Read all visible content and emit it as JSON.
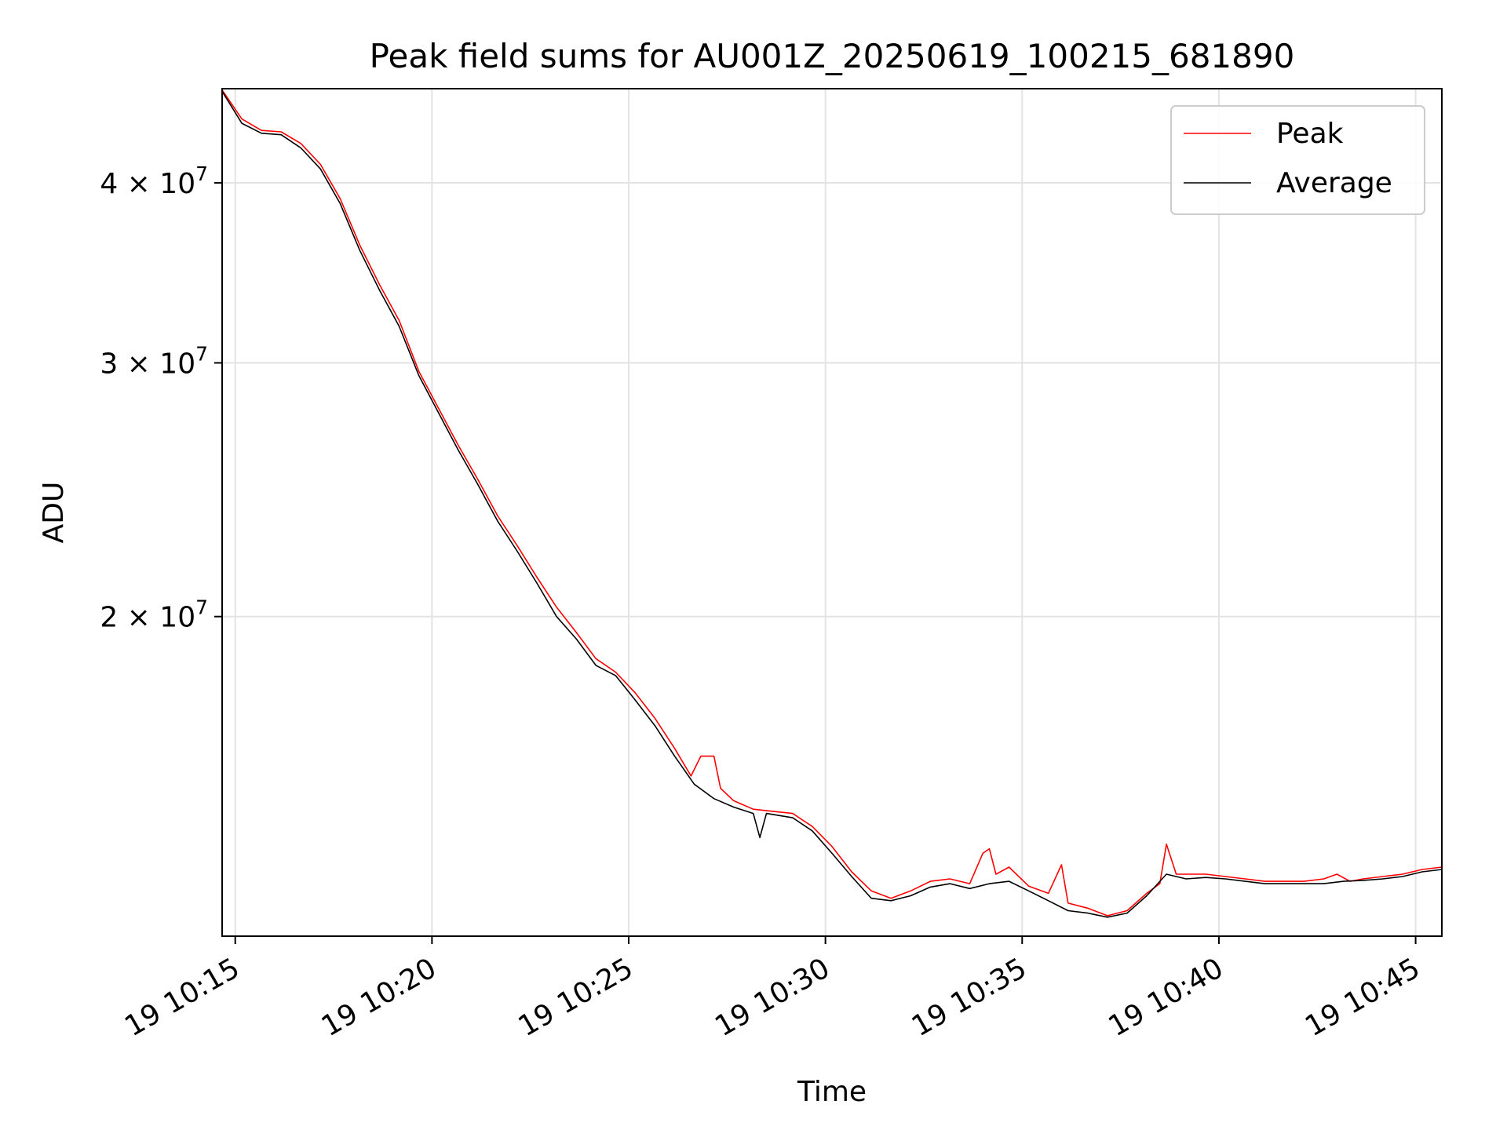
{
  "chart_data": {
    "type": "line",
    "title": "Peak field sums for AU001Z_20250619_100215_681890",
    "xlabel": "Time",
    "ylabel": "ADU",
    "x_scale": "time",
    "y_scale": "log",
    "xlim": [
      "2025-06-19 10:14:40",
      "2025-06-19 10:45:40"
    ],
    "ylim": [
      12000000,
      46500000
    ],
    "x_tick_labels": [
      {
        "value": "2025-06-19 10:15:00",
        "label": "19 10:15"
      },
      {
        "value": "2025-06-19 10:20:00",
        "label": "19 10:20"
      },
      {
        "value": "2025-06-19 10:25:00",
        "label": "19 10:25"
      },
      {
        "value": "2025-06-19 10:30:00",
        "label": "19 10:30"
      },
      {
        "value": "2025-06-19 10:35:00",
        "label": "19 10:35"
      },
      {
        "value": "2025-06-19 10:40:00",
        "label": "19 10:40"
      },
      {
        "value": "2025-06-19 10:45:00",
        "label": "19 10:45"
      }
    ],
    "y_tick_labels": [
      {
        "value": 20000000,
        "mantissa": "2",
        "base": "10",
        "exponent": "7"
      },
      {
        "value": 30000000,
        "mantissa": "3",
        "base": "10",
        "exponent": "7"
      },
      {
        "value": 40000000,
        "mantissa": "4",
        "base": "10",
        "exponent": "7"
      }
    ],
    "grid": true,
    "legend_position": "top-right",
    "series": [
      {
        "name": "Peak",
        "color": "#ff0000",
        "points": [
          [
            "2025-06-19 10:14:40",
            46400000
          ],
          [
            "2025-06-19 10:15:10",
            44300000
          ],
          [
            "2025-06-19 10:15:40",
            43500000
          ],
          [
            "2025-06-19 10:16:10",
            43400000
          ],
          [
            "2025-06-19 10:16:40",
            42600000
          ],
          [
            "2025-06-19 10:17:10",
            41200000
          ],
          [
            "2025-06-19 10:17:40",
            39000000
          ],
          [
            "2025-06-19 10:18:10",
            36200000
          ],
          [
            "2025-06-19 10:18:40",
            34000000
          ],
          [
            "2025-06-19 10:19:10",
            32100000
          ],
          [
            "2025-06-19 10:19:40",
            29600000
          ],
          [
            "2025-06-19 10:20:10",
            27900000
          ],
          [
            "2025-06-19 10:20:40",
            26300000
          ],
          [
            "2025-06-19 10:21:10",
            24900000
          ],
          [
            "2025-06-19 10:21:40",
            23500000
          ],
          [
            "2025-06-19 10:22:10",
            22400000
          ],
          [
            "2025-06-19 10:22:40",
            21300000
          ],
          [
            "2025-06-19 10:23:10",
            20300000
          ],
          [
            "2025-06-19 10:23:40",
            19500000
          ],
          [
            "2025-06-19 10:24:10",
            18700000
          ],
          [
            "2025-06-19 10:24:40",
            18300000
          ],
          [
            "2025-06-19 10:25:10",
            17700000
          ],
          [
            "2025-06-19 10:25:40",
            17000000
          ],
          [
            "2025-06-19 10:26:10",
            16200000
          ],
          [
            "2025-06-19 10:26:35",
            15500000
          ],
          [
            "2025-06-19 10:26:50",
            16000000
          ],
          [
            "2025-06-19 10:27:10",
            16000000
          ],
          [
            "2025-06-19 10:27:20",
            15200000
          ],
          [
            "2025-06-19 10:27:40",
            14900000
          ],
          [
            "2025-06-19 10:28:10",
            14700000
          ],
          [
            "2025-06-19 10:28:40",
            14650000
          ],
          [
            "2025-06-19 10:29:10",
            14600000
          ],
          [
            "2025-06-19 10:29:40",
            14300000
          ],
          [
            "2025-06-19 10:30:10",
            13850000
          ],
          [
            "2025-06-19 10:30:40",
            13300000
          ],
          [
            "2025-06-19 10:31:10",
            12900000
          ],
          [
            "2025-06-19 10:31:40",
            12750000
          ],
          [
            "2025-06-19 10:32:10",
            12900000
          ],
          [
            "2025-06-19 10:32:40",
            13100000
          ],
          [
            "2025-06-19 10:33:10",
            13150000
          ],
          [
            "2025-06-19 10:33:40",
            13050000
          ],
          [
            "2025-06-19 10:34:00",
            13700000
          ],
          [
            "2025-06-19 10:34:10",
            13800000
          ],
          [
            "2025-06-19 10:34:20",
            13250000
          ],
          [
            "2025-06-19 10:34:40",
            13400000
          ],
          [
            "2025-06-19 10:35:10",
            13000000
          ],
          [
            "2025-06-19 10:35:40",
            12850000
          ],
          [
            "2025-06-19 10:36:00",
            13450000
          ],
          [
            "2025-06-19 10:36:10",
            12650000
          ],
          [
            "2025-06-19 10:36:40",
            12550000
          ],
          [
            "2025-06-19 10:37:10",
            12400000
          ],
          [
            "2025-06-19 10:37:40",
            12500000
          ],
          [
            "2025-06-19 10:38:10",
            12850000
          ],
          [
            "2025-06-19 10:38:30",
            13050000
          ],
          [
            "2025-06-19 10:38:40",
            13900000
          ],
          [
            "2025-06-19 10:38:55",
            13250000
          ],
          [
            "2025-06-19 10:39:40",
            13250000
          ],
          [
            "2025-06-19 10:40:10",
            13200000
          ],
          [
            "2025-06-19 10:40:40",
            13150000
          ],
          [
            "2025-06-19 10:41:10",
            13100000
          ],
          [
            "2025-06-19 10:41:40",
            13100000
          ],
          [
            "2025-06-19 10:42:10",
            13100000
          ],
          [
            "2025-06-19 10:42:40",
            13150000
          ],
          [
            "2025-06-19 10:43:00",
            13250000
          ],
          [
            "2025-06-19 10:43:20",
            13100000
          ],
          [
            "2025-06-19 10:43:40",
            13150000
          ],
          [
            "2025-06-19 10:44:10",
            13200000
          ],
          [
            "2025-06-19 10:44:40",
            13250000
          ],
          [
            "2025-06-19 10:45:10",
            13350000
          ],
          [
            "2025-06-19 10:45:40",
            13400000
          ]
        ]
      },
      {
        "name": "Average",
        "color": "#000000",
        "points": [
          [
            "2025-06-19 10:14:40",
            46300000
          ],
          [
            "2025-06-19 10:15:10",
            44000000
          ],
          [
            "2025-06-19 10:15:40",
            43300000
          ],
          [
            "2025-06-19 10:16:10",
            43200000
          ],
          [
            "2025-06-19 10:16:40",
            42300000
          ],
          [
            "2025-06-19 10:17:10",
            40900000
          ],
          [
            "2025-06-19 10:17:40",
            38700000
          ],
          [
            "2025-06-19 10:18:10",
            35900000
          ],
          [
            "2025-06-19 10:18:40",
            33700000
          ],
          [
            "2025-06-19 10:19:10",
            31800000
          ],
          [
            "2025-06-19 10:19:40",
            29400000
          ],
          [
            "2025-06-19 10:20:10",
            27700000
          ],
          [
            "2025-06-19 10:20:40",
            26100000
          ],
          [
            "2025-06-19 10:21:10",
            24700000
          ],
          [
            "2025-06-19 10:21:40",
            23300000
          ],
          [
            "2025-06-19 10:22:10",
            22200000
          ],
          [
            "2025-06-19 10:22:40",
            21100000
          ],
          [
            "2025-06-19 10:23:10",
            20000000
          ],
          [
            "2025-06-19 10:23:40",
            19300000
          ],
          [
            "2025-06-19 10:24:10",
            18500000
          ],
          [
            "2025-06-19 10:24:40",
            18200000
          ],
          [
            "2025-06-19 10:25:10",
            17500000
          ],
          [
            "2025-06-19 10:25:40",
            16800000
          ],
          [
            "2025-06-19 10:26:10",
            16000000
          ],
          [
            "2025-06-19 10:26:40",
            15300000
          ],
          [
            "2025-06-19 10:27:10",
            14950000
          ],
          [
            "2025-06-19 10:27:40",
            14750000
          ],
          [
            "2025-06-19 10:28:10",
            14600000
          ],
          [
            "2025-06-19 10:28:20",
            14050000
          ],
          [
            "2025-06-19 10:28:30",
            14600000
          ],
          [
            "2025-06-19 10:29:10",
            14500000
          ],
          [
            "2025-06-19 10:29:40",
            14200000
          ],
          [
            "2025-06-19 10:30:10",
            13700000
          ],
          [
            "2025-06-19 10:30:40",
            13200000
          ],
          [
            "2025-06-19 10:31:10",
            12750000
          ],
          [
            "2025-06-19 10:31:40",
            12700000
          ],
          [
            "2025-06-19 10:32:10",
            12800000
          ],
          [
            "2025-06-19 10:32:40",
            12980000
          ],
          [
            "2025-06-19 10:33:10",
            13050000
          ],
          [
            "2025-06-19 10:33:40",
            12950000
          ],
          [
            "2025-06-19 10:34:10",
            13050000
          ],
          [
            "2025-06-19 10:34:40",
            13100000
          ],
          [
            "2025-06-19 10:35:10",
            12900000
          ],
          [
            "2025-06-19 10:35:40",
            12700000
          ],
          [
            "2025-06-19 10:36:10",
            12500000
          ],
          [
            "2025-06-19 10:36:40",
            12450000
          ],
          [
            "2025-06-19 10:37:10",
            12370000
          ],
          [
            "2025-06-19 10:37:40",
            12450000
          ],
          [
            "2025-06-19 10:38:10",
            12800000
          ],
          [
            "2025-06-19 10:38:40",
            13250000
          ],
          [
            "2025-06-19 10:39:10",
            13150000
          ],
          [
            "2025-06-19 10:39:40",
            13180000
          ],
          [
            "2025-06-19 10:40:10",
            13150000
          ],
          [
            "2025-06-19 10:40:40",
            13100000
          ],
          [
            "2025-06-19 10:41:10",
            13050000
          ],
          [
            "2025-06-19 10:41:40",
            13050000
          ],
          [
            "2025-06-19 10:42:10",
            13050000
          ],
          [
            "2025-06-19 10:42:40",
            13050000
          ],
          [
            "2025-06-19 10:43:10",
            13100000
          ],
          [
            "2025-06-19 10:43:40",
            13120000
          ],
          [
            "2025-06-19 10:44:10",
            13150000
          ],
          [
            "2025-06-19 10:44:40",
            13200000
          ],
          [
            "2025-06-19 10:45:10",
            13300000
          ],
          [
            "2025-06-19 10:45:40",
            13350000
          ]
        ]
      }
    ]
  }
}
